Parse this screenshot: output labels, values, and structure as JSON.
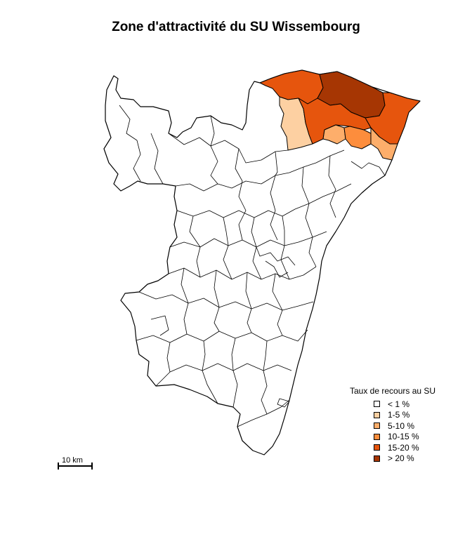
{
  "title": "Zone d'attractivité du SU Wissembourg",
  "map": {
    "region": "Bas-Rhin",
    "fill_default": "#ffffff",
    "stroke": "#000000"
  },
  "legend": {
    "title": "Taux de recours au SU",
    "items": [
      {
        "label": "< 1 %",
        "color": "#ffffff"
      },
      {
        "label": "1-5 %",
        "color": "#fdd0a2"
      },
      {
        "label": "5-10 %",
        "color": "#fdae6b"
      },
      {
        "label": "10-15 %",
        "color": "#fd8d3c"
      },
      {
        "label": "15-20 %",
        "color": "#e6550d"
      },
      {
        "label": "> 20 %",
        "color": "#a63603"
      }
    ]
  },
  "scalebar": {
    "label": "10 km"
  },
  "highlighted_zones": [
    {
      "name": "zone-west",
      "class": "1-5 %"
    },
    {
      "name": "zone-north-west",
      "class": "15-20 %"
    },
    {
      "name": "zone-north-center",
      "class": "> 20 %"
    },
    {
      "name": "zone-central",
      "class": "15-20 %"
    },
    {
      "name": "zone-east",
      "class": "15-20 %"
    },
    {
      "name": "zone-south-1",
      "class": "5-10 %"
    },
    {
      "name": "zone-south-2",
      "class": "10-15 %"
    },
    {
      "name": "zone-south-3",
      "class": "5-10 %"
    }
  ]
}
